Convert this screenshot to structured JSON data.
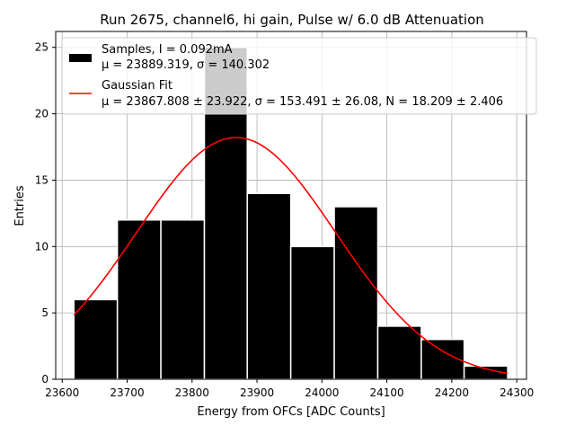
{
  "chart_data": {
    "type": "bar",
    "title": "Run 2675, channel6, hi gain, Pulse w/ 6.0 dB Attenuation",
    "xlabel": "Energy from OFCs [ADC Counts]",
    "ylabel": "Entries",
    "xlim": [
      23590,
      24315
    ],
    "ylim": [
      0,
      26.2
    ],
    "xticks": [
      23600,
      23700,
      23800,
      23900,
      24000,
      24100,
      24200,
      24300
    ],
    "yticks": [
      0,
      5,
      10,
      15,
      20,
      25
    ],
    "grid": true,
    "legend_position": "top-right",
    "bins": [
      {
        "x0": 23618,
        "x1": 23685,
        "count": 6
      },
      {
        "x0": 23685,
        "x1": 23752,
        "count": 12
      },
      {
        "x0": 23752,
        "x1": 23819,
        "count": 12
      },
      {
        "x0": 23819,
        "x1": 23885,
        "count": 25
      },
      {
        "x0": 23885,
        "x1": 23952,
        "count": 14
      },
      {
        "x0": 23952,
        "x1": 24019,
        "count": 10
      },
      {
        "x0": 24019,
        "x1": 24086,
        "count": 13
      },
      {
        "x0": 24086,
        "x1": 24153,
        "count": 4
      },
      {
        "x0": 24153,
        "x1": 24219,
        "count": 3
      },
      {
        "x0": 24219,
        "x1": 24286,
        "count": 1
      }
    ],
    "fit": {
      "mu": 23867.808,
      "sigma": 153.491,
      "N": 18.209,
      "x_range": [
        23618,
        24286
      ]
    },
    "colors": {
      "bars": "#000000",
      "fit": "#ff0000",
      "bar_edge": "#ffffff",
      "grid": "#b0b0b0"
    },
    "legend": [
      {
        "line1": "Samples, I = 0.092mA",
        "line2": "μ = 23889.319, σ = 140.302"
      },
      {
        "line1": "Gaussian Fit",
        "line2": "μ = 23867.808 ± 23.922, σ = 153.491 ± 26.08, N = 18.209 ± 2.406"
      }
    ]
  }
}
